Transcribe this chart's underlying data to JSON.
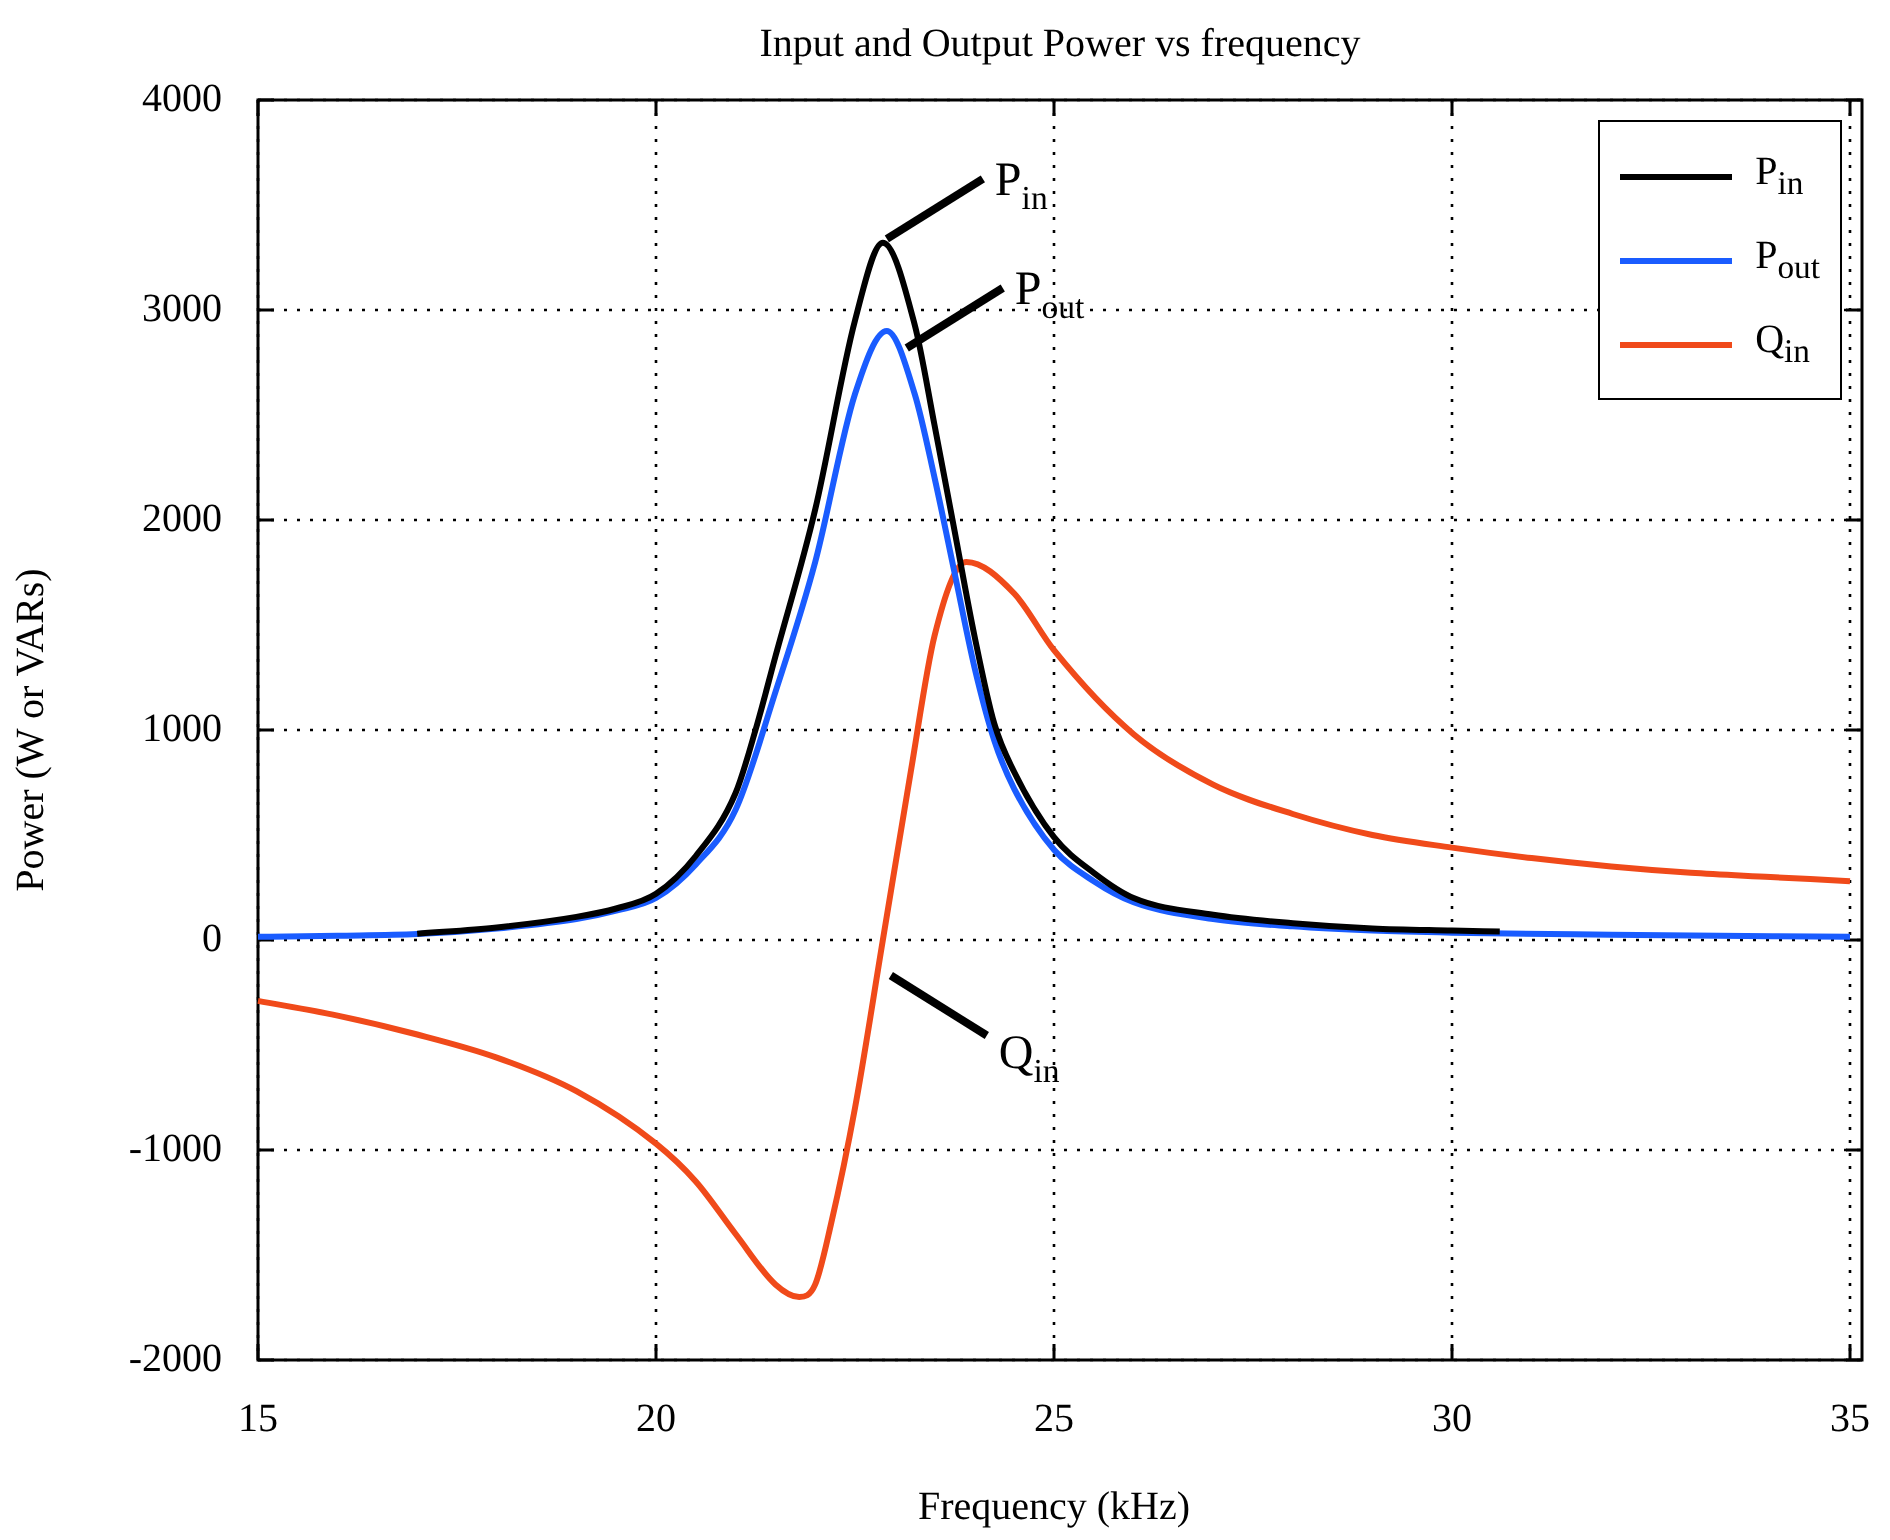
{
  "chart_data": {
    "type": "line",
    "title": "Input and Output Power vs frequency",
    "xlabel": "Frequency (kHz)",
    "ylabel": "Power (W or VARs)",
    "xlim": [
      15,
      35
    ],
    "xticks": [
      15,
      20,
      25,
      30,
      35
    ],
    "ylim": [
      -2000,
      4000
    ],
    "yticks": [
      -2000,
      -1000,
      0,
      1000,
      2000,
      3000,
      4000
    ],
    "grid": true,
    "legend": "top right",
    "marker": "none",
    "line_style": "solid",
    "series": [
      {
        "name": "P$_{in}$",
        "color": "#000000",
        "x": [
          17,
          18,
          19,
          19.5,
          20,
          20.5,
          21,
          21.25,
          21.5,
          22,
          22.5,
          22.85,
          23.25,
          23.5,
          23.75,
          24,
          24.25,
          24.5,
          25,
          25.5,
          26,
          27,
          28,
          29,
          30,
          30.6
        ],
        "values": [
          30,
          60,
          110,
          150,
          220,
          400,
          700,
          1000,
          1350,
          2050,
          2950,
          3320,
          2930,
          2450,
          1950,
          1450,
          1030,
          800,
          490,
          320,
          200,
          120,
          80,
          55,
          45,
          40
        ]
      },
      {
        "name": "P$_{out}$",
        "color": "#1a5cff",
        "x": [
          15,
          16,
          17,
          18,
          19,
          19.5,
          20,
          20.5,
          21,
          21.5,
          22,
          22.5,
          22.9,
          23.25,
          23.5,
          23.75,
          24,
          24.25,
          24.5,
          25,
          25.5,
          26,
          27,
          28,
          29,
          30,
          32,
          35
        ],
        "values": [
          15,
          20,
          28,
          55,
          100,
          140,
          200,
          360,
          620,
          1180,
          1800,
          2600,
          2900,
          2600,
          2200,
          1750,
          1300,
          950,
          720,
          430,
          280,
          180,
          100,
          65,
          45,
          35,
          25,
          15
        ]
      },
      {
        "name": "Q$_{in}$",
        "color": "#f04a1a",
        "x": [
          15,
          16,
          17,
          18,
          19,
          20,
          20.5,
          21,
          21.5,
          21.8,
          22,
          22.2,
          22.5,
          22.85,
          23.2,
          23.5,
          23.9,
          24.5,
          25,
          26,
          27,
          28,
          29,
          30,
          31,
          32,
          33,
          34,
          35
        ],
        "values": [
          -290,
          -360,
          -450,
          -560,
          -720,
          -970,
          -1150,
          -1400,
          -1640,
          -1700,
          -1640,
          -1350,
          -800,
          0,
          800,
          1450,
          1800,
          1650,
          1380,
          980,
          740,
          600,
          500,
          440,
          390,
          350,
          320,
          300,
          280
        ]
      }
    ],
    "annotations": [
      {
        "text": "P$_{in}$",
        "x": 22.85,
        "y": 3320
      },
      {
        "text": "P$_{out}$",
        "x": 23.1,
        "y": 2800
      },
      {
        "text": "Q$_{in}$",
        "x": 22.9,
        "y": -150
      }
    ]
  }
}
